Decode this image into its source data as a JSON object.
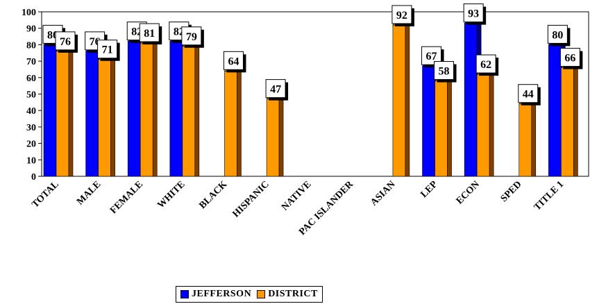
{
  "chart_data": {
    "type": "bar",
    "categories": [
      "TOTAL",
      "MALE",
      "FEMALE",
      "WHITE",
      "BLACK",
      "HISPANIC",
      "NATIVE",
      "PAC ISLANDER",
      "ASIAN",
      "LEP",
      "ECON",
      "SPED",
      "TITLE 1"
    ],
    "series": [
      {
        "name": "JEFFERSON",
        "values": [
          80,
          76,
          82,
          82,
          null,
          null,
          null,
          null,
          null,
          67,
          93,
          null,
          80
        ],
        "color": "#0000ff",
        "side_color": "#000080"
      },
      {
        "name": "DISTRICT",
        "values": [
          76,
          71,
          81,
          79,
          64,
          47,
          null,
          null,
          92,
          58,
          62,
          44,
          66
        ],
        "color": "#ff9900",
        "side_color": "#804000"
      }
    ],
    "ylim": [
      0,
      100
    ],
    "yticks": [
      0,
      10,
      20,
      30,
      40,
      50,
      60,
      70,
      80,
      90,
      100
    ],
    "style": "3d-bar",
    "data_labels": true,
    "legend_position": "bottom"
  }
}
